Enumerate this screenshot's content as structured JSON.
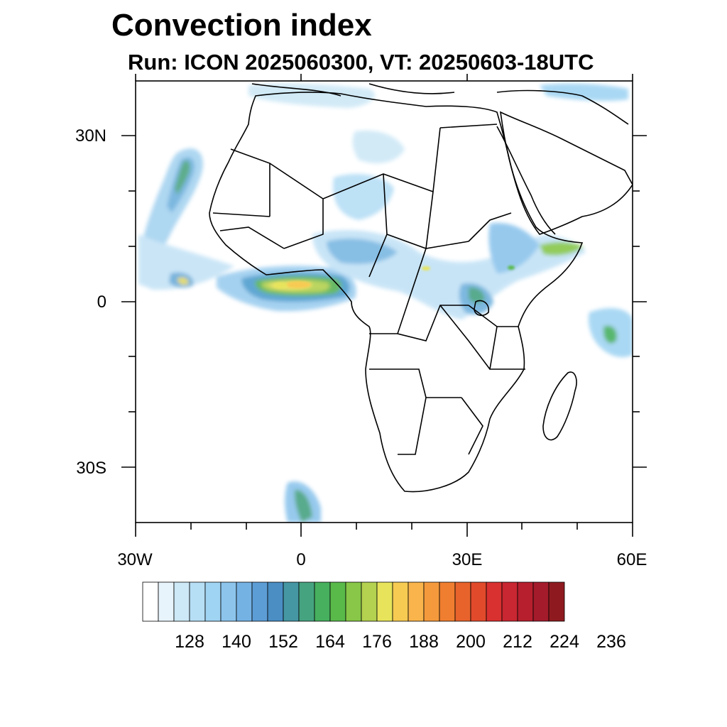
{
  "title": "Convection index",
  "subtitle": "Run: ICON 2025060300,  VT: 20250603-18UTC",
  "map": {
    "extent": {
      "lon_min": -30,
      "lon_max": 60,
      "lat_min": -40,
      "lat_max": 40
    },
    "lat_labels": [
      {
        "lat": 30,
        "text": "30N"
      },
      {
        "lat": 0,
        "text": "0"
      },
      {
        "lat": -30,
        "text": "30S"
      }
    ],
    "lon_labels": [
      {
        "lon": -30,
        "text": "30W"
      },
      {
        "lon": 0,
        "text": "0"
      },
      {
        "lon": 30,
        "text": "30E"
      },
      {
        "lon": 60,
        "text": "60E"
      }
    ]
  },
  "colorbar": {
    "colors": [
      "#ffffff",
      "#e8f4fb",
      "#cde8f6",
      "#b6def5",
      "#a0d4f3",
      "#8cc4ec",
      "#75b2e4",
      "#5d9dd6",
      "#4a8ec4",
      "#4597a3",
      "#46a380",
      "#46b05e",
      "#59ba4a",
      "#88c748",
      "#b4d14f",
      "#e7e45b",
      "#f7cb52",
      "#f9b44b",
      "#f59a3c",
      "#f07e30",
      "#e8632c",
      "#e14a2b",
      "#d93030",
      "#c92731",
      "#b71f2e",
      "#a41b2b",
      "#8e1a1f"
    ],
    "labels": [
      "128",
      "140",
      "152",
      "164",
      "176",
      "188",
      "200",
      "212",
      "224",
      "236"
    ]
  }
}
